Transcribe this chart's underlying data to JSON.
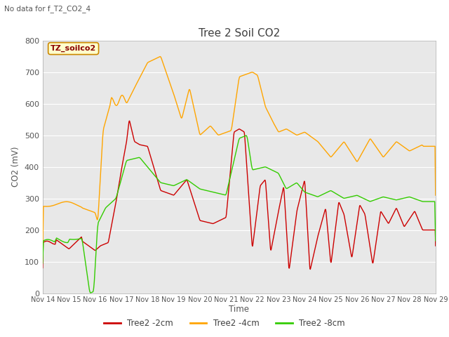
{
  "title": "Tree 2 Soil CO2",
  "subtitle": "No data for f_T2_CO2_4",
  "ylabel": "CO2 (mV)",
  "xlabel": "Time",
  "ylim": [
    0,
    800
  ],
  "bg_color": "#e8e8e8",
  "fig_color": "#ffffff",
  "legend_label": "TZ_soilco2",
  "xtick_labels": [
    "Nov 14",
    "Nov 15",
    "Nov 16",
    "Nov 17",
    "Nov 18",
    "Nov 19",
    "Nov 20",
    "Nov 21",
    "Nov 22",
    "Nov 23",
    "Nov 24",
    "Nov 25",
    "Nov 26",
    "Nov 27",
    "Nov 28",
    "Nov 29"
  ],
  "grid_color": "#ffffff",
  "line_colors": {
    "2cm": "#cc0000",
    "4cm": "#ffa500",
    "8cm": "#33cc00"
  },
  "legend_labels": [
    "Tree2 -2cm",
    "Tree2 -4cm",
    "Tree2 -8cm"
  ],
  "title_color": "#404040",
  "subtitle_color": "#555555",
  "axis_label_color": "#555555",
  "tick_label_color": "#555555",
  "label_box_facecolor": "#ffffcc",
  "label_box_edgecolor": "#cc8800",
  "label_text_color": "#8B0000"
}
